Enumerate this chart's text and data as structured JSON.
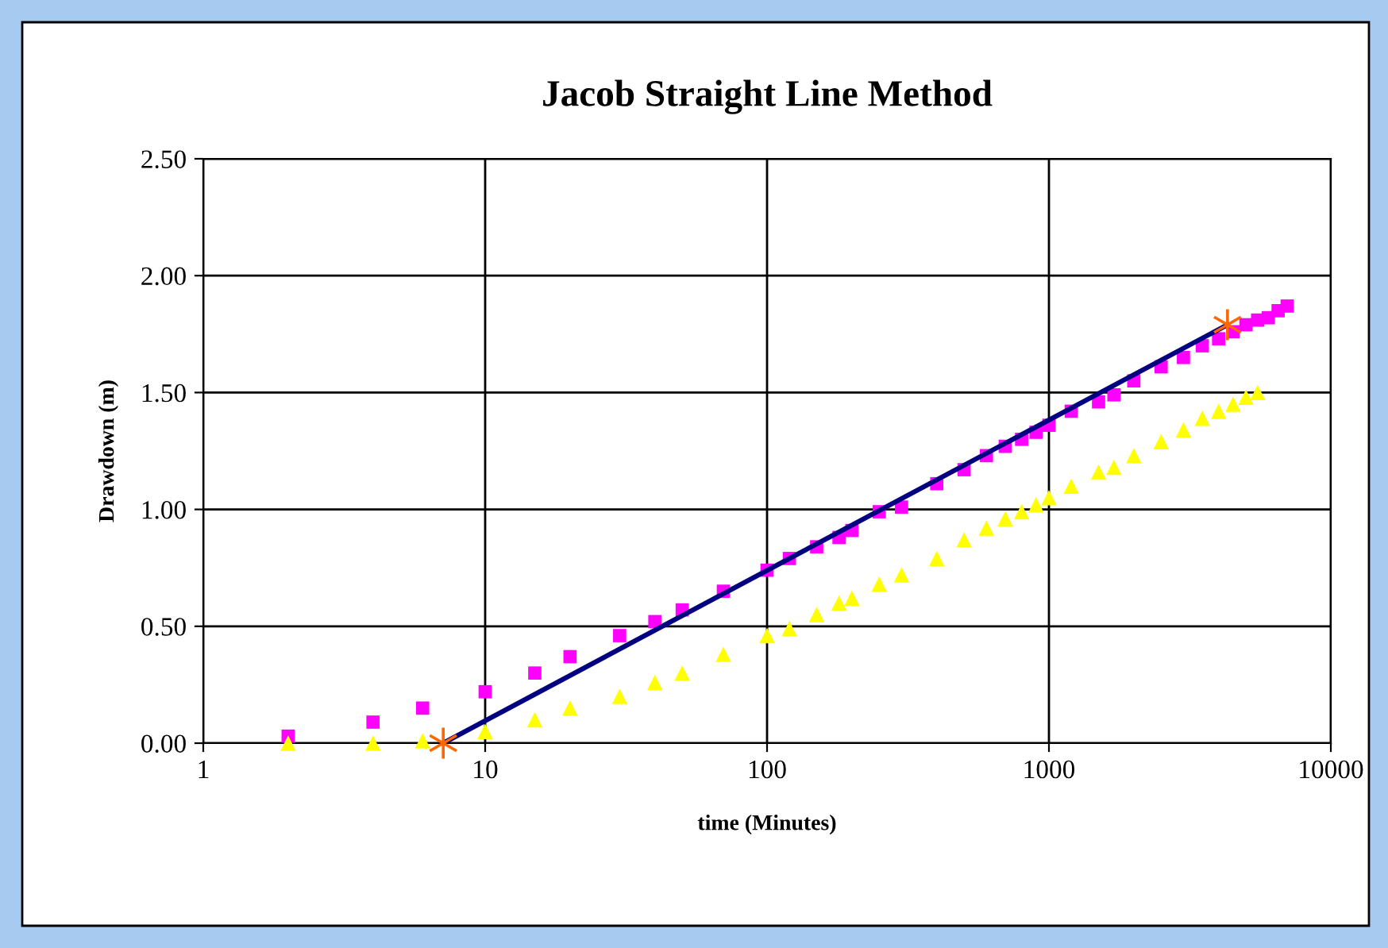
{
  "chart_data": {
    "type": "scatter",
    "title": "Jacob Straight Line Method",
    "xlabel": "time (Minutes)",
    "ylabel": "Drawdown (m)",
    "log": "x",
    "grid": true,
    "xlim": [
      1,
      10000
    ],
    "xticks": [
      1,
      10,
      100,
      1000,
      10000
    ],
    "ylim": [
      0,
      2.5
    ],
    "yticks": [
      {
        "value": 0,
        "label": "0.00"
      },
      {
        "value": 0.5,
        "label": "0.50"
      },
      {
        "value": 1,
        "label": "1.00"
      },
      {
        "value": 1.5,
        "label": "1.50"
      },
      {
        "value": 2,
        "label": "2.00"
      },
      {
        "value": 2.5,
        "label": "2.50"
      }
    ],
    "series": [
      {
        "marker": "square",
        "color": "#ff00ff",
        "x": [
          2,
          4,
          6,
          10,
          15,
          20,
          30,
          40,
          50,
          70,
          100,
          120,
          150,
          180,
          200,
          250,
          300,
          400,
          500,
          600,
          700,
          800,
          900,
          1000,
          1200,
          1500,
          1700,
          2000,
          2500,
          3000,
          3500,
          4000,
          4500,
          5000,
          5500,
          6000,
          6500,
          7000
        ],
        "values": [
          0.03,
          0.09,
          0.15,
          0.22,
          0.3,
          0.37,
          0.46,
          0.52,
          0.57,
          0.65,
          0.74,
          0.79,
          0.84,
          0.88,
          0.91,
          0.99,
          1.01,
          1.11,
          1.17,
          1.23,
          1.27,
          1.3,
          1.33,
          1.36,
          1.42,
          1.46,
          1.49,
          1.55,
          1.61,
          1.65,
          1.7,
          1.73,
          1.76,
          1.79,
          1.81,
          1.82,
          1.85,
          1.87
        ]
      },
      {
        "marker": "triangle",
        "color": "#ffff00",
        "x": [
          2,
          4,
          6,
          10,
          15,
          20,
          30,
          40,
          50,
          70,
          100,
          120,
          150,
          180,
          200,
          250,
          300,
          400,
          500,
          600,
          700,
          800,
          900,
          1000,
          1200,
          1500,
          1700,
          2000,
          2500,
          3000,
          3500,
          4000,
          4500,
          5000,
          5500
        ],
        "values": [
          0.0,
          0.0,
          0.01,
          0.05,
          0.1,
          0.15,
          0.2,
          0.26,
          0.3,
          0.38,
          0.46,
          0.49,
          0.55,
          0.6,
          0.62,
          0.68,
          0.72,
          0.79,
          0.87,
          0.92,
          0.96,
          0.99,
          1.02,
          1.05,
          1.1,
          1.16,
          1.18,
          1.23,
          1.29,
          1.34,
          1.39,
          1.42,
          1.45,
          1.48,
          1.5
        ]
      },
      {
        "type": "line",
        "marker": "none",
        "color": "#000080",
        "x": [
          7.1,
          4300
        ],
        "values": [
          0,
          1.79
        ]
      },
      {
        "marker": "cross",
        "color": "#ff6600",
        "x": [
          7.1,
          4300
        ],
        "values": [
          0,
          1.79
        ]
      }
    ]
  }
}
